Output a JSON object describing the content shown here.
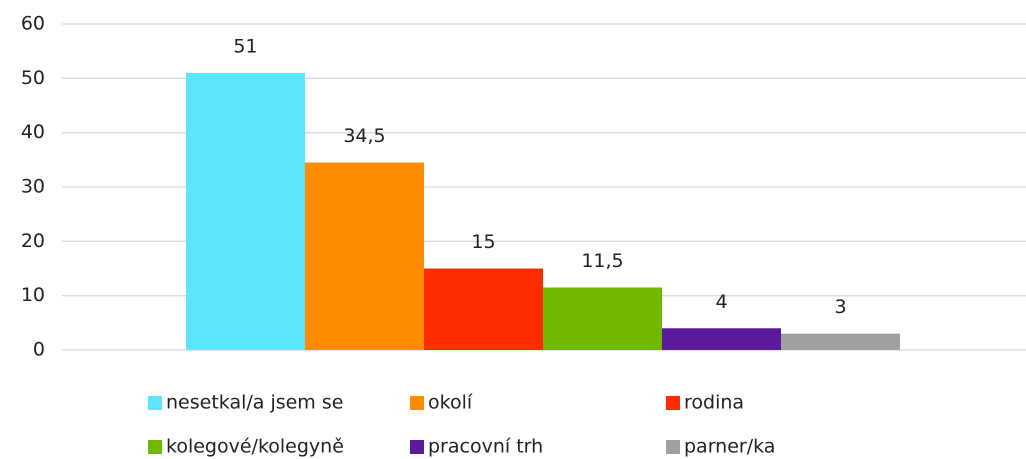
{
  "chart_data": {
    "type": "bar",
    "categories": [
      null
    ],
    "series": [
      {
        "name": "nesetkal/a jsem se",
        "color": "#5ce5fc",
        "values": [
          51
        ]
      },
      {
        "name": "okolí",
        "color": "#ff8c00",
        "values": [
          34.5
        ],
        "value_labels": [
          "34,5"
        ]
      },
      {
        "name": "rodina",
        "color": "#ff2d00",
        "values": [
          15
        ]
      },
      {
        "name": "kolegové/kolegyně",
        "color": "#70b800",
        "values": [
          11.5
        ],
        "value_labels": [
          "11,5"
        ]
      },
      {
        "name": "pracovní trh",
        "color": "#5b1a9a",
        "values": [
          4
        ]
      },
      {
        "name": "parner/ka",
        "color": "#a0a0a0",
        "values": [
          3
        ]
      }
    ],
    "ylim": [
      0,
      60
    ],
    "yticks": [
      0,
      10,
      20,
      30,
      40,
      50,
      60
    ],
    "grid": true,
    "legend": "bottom"
  }
}
